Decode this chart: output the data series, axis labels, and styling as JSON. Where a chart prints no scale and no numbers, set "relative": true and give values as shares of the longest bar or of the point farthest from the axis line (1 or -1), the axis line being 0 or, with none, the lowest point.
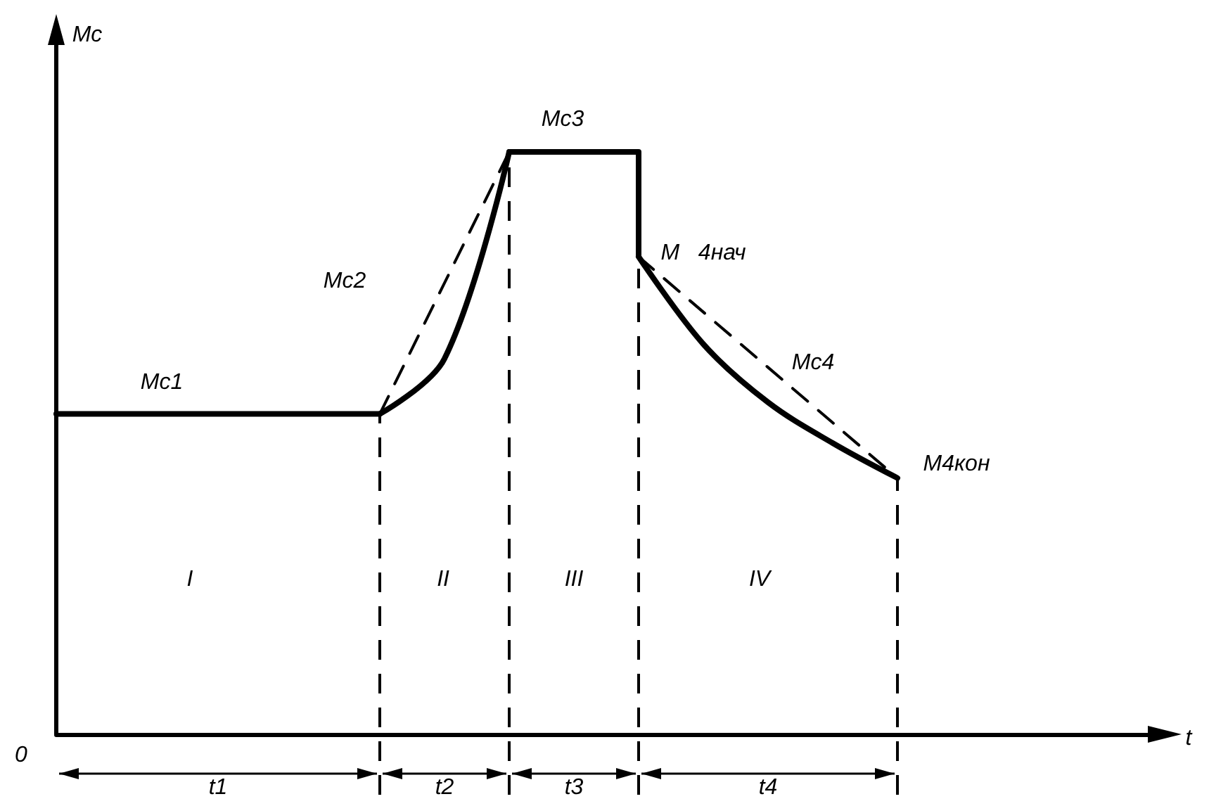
{
  "chart_data": {
    "type": "line",
    "relative": true,
    "ylabel": "Mc",
    "xlabel": "t",
    "line_style": "solid",
    "marker": "none",
    "grid": false,
    "categories": [
      null,
      null,
      null,
      null,
      null,
      null,
      null,
      null,
      null,
      null,
      null,
      null,
      null,
      null,
      null,
      null,
      null,
      null
    ],
    "series": [
      {
        "color": "#000000",
        "values": [
          0.55,
          0.55,
          0.55,
          0.55,
          0.55,
          0.55,
          null,
          null,
          null,
          null,
          null,
          null,
          null,
          null,
          null,
          null,
          null,
          null
        ]
      },
      {
        "color": "#000000",
        "values": [
          null,
          null,
          null,
          null,
          null,
          0.55,
          0.645,
          1,
          null,
          null,
          null,
          null,
          null,
          null,
          null,
          null,
          null,
          null
        ]
      },
      {
        "color": "#000000",
        "line_style": "dashed",
        "values": [
          null,
          null,
          null,
          null,
          null,
          0.55,
          null,
          1,
          null,
          null,
          null,
          null,
          null,
          null,
          null,
          null,
          null,
          null
        ]
      },
      {
        "color": "#000000",
        "values": [
          null,
          null,
          null,
          null,
          null,
          null,
          null,
          1,
          1,
          1,
          null,
          null,
          null,
          null,
          null,
          null,
          null,
          null
        ]
      },
      {
        "color": "#000000",
        "values": [
          null,
          null,
          null,
          null,
          null,
          null,
          null,
          null,
          null,
          0.82,
          0.67,
          0.57,
          0.5,
          0.44,
          null,
          null,
          null,
          null
        ]
      },
      {
        "color": "#000000",
        "line_style": "dashed",
        "values": [
          null,
          null,
          null,
          null,
          null,
          null,
          null,
          null,
          null,
          0.82,
          null,
          null,
          null,
          0.44,
          null,
          null,
          null,
          null
        ]
      }
    ],
    "annotations": [
      "0",
      "Mc1",
      "Mc2",
      "Mc3",
      "M   4нач",
      "Mc4",
      "M4кон",
      "I",
      "II",
      "III",
      "IV",
      "t1",
      "t2",
      "t3",
      "t4"
    ]
  }
}
